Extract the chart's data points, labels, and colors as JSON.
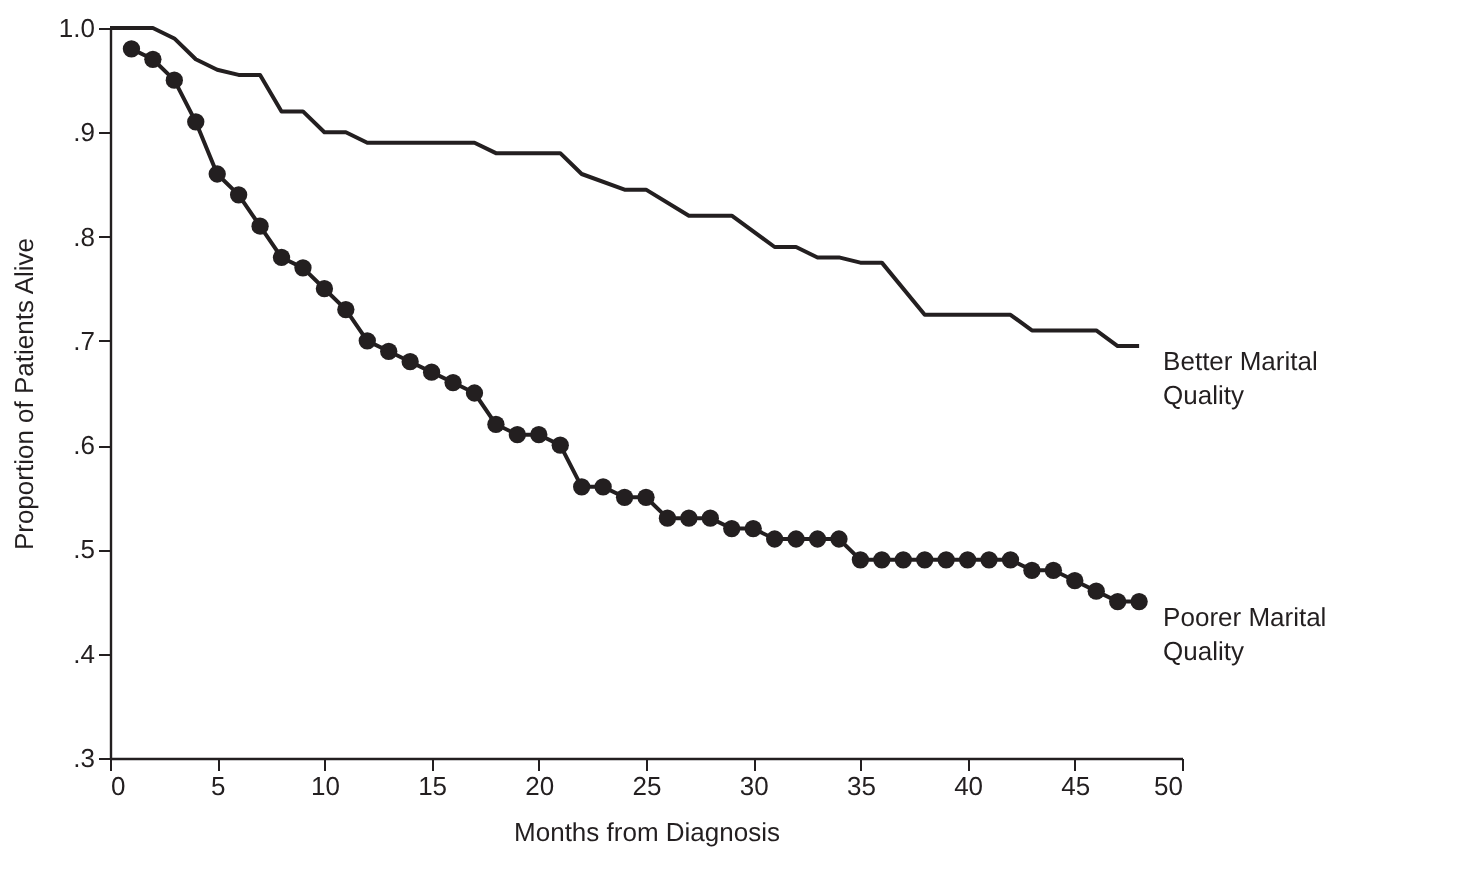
{
  "chart_data": {
    "type": "line",
    "xlabel": "Months from Diagnosis",
    "ylabel": "Proportion of Patients Alive",
    "xlim": [
      0,
      50
    ],
    "xticks": [
      0,
      5,
      10,
      15,
      20,
      25,
      30,
      35,
      40,
      45,
      50
    ],
    "ylim": [
      0.3,
      1.0
    ],
    "yticks": [
      {
        "value": 0.3,
        "label": ".3"
      },
      {
        "value": 0.4,
        "label": ".4"
      },
      {
        "value": 0.5,
        "label": ".5"
      },
      {
        "value": 0.6,
        "label": ".6"
      },
      {
        "value": 0.7,
        "label": ".7"
      },
      {
        "value": 0.8,
        "label": ".8"
      },
      {
        "value": 0.9,
        "label": ".9"
      },
      {
        "value": 1.0,
        "label": "1.0"
      }
    ],
    "grid": false,
    "series": [
      {
        "name": "Better Marital Quality",
        "color": "#231f20",
        "marker": "none",
        "x": [
          0,
          2,
          3,
          4,
          5,
          6,
          7,
          8,
          9,
          10,
          11,
          12,
          17,
          18,
          21,
          22,
          24,
          25,
          27,
          29,
          31,
          32,
          33,
          34,
          35,
          36,
          38,
          42,
          43,
          46,
          47,
          48
        ],
        "values": [
          1.0,
          1.0,
          0.99,
          0.97,
          0.96,
          0.955,
          0.955,
          0.92,
          0.92,
          0.9,
          0.9,
          0.89,
          0.89,
          0.88,
          0.88,
          0.86,
          0.845,
          0.845,
          0.82,
          0.82,
          0.79,
          0.79,
          0.78,
          0.78,
          0.775,
          0.775,
          0.725,
          0.725,
          0.71,
          0.71,
          0.695,
          0.695
        ]
      },
      {
        "name": "Poorer Marital Quality",
        "color": "#231f20",
        "marker": "circle",
        "x": [
          1,
          2,
          3,
          4,
          5,
          6,
          7,
          8,
          9,
          10,
          11,
          12,
          13,
          14,
          15,
          16,
          17,
          18,
          19,
          20,
          21,
          22,
          23,
          24,
          25,
          26,
          27,
          28,
          29,
          30,
          31,
          32,
          33,
          34,
          35,
          36,
          37,
          38,
          39,
          40,
          41,
          42,
          43,
          44,
          45,
          46,
          47,
          48
        ],
        "values": [
          0.98,
          0.97,
          0.95,
          0.91,
          0.86,
          0.84,
          0.81,
          0.78,
          0.77,
          0.75,
          0.73,
          0.7,
          0.69,
          0.68,
          0.67,
          0.66,
          0.65,
          0.62,
          0.61,
          0.61,
          0.6,
          0.56,
          0.56,
          0.55,
          0.55,
          0.53,
          0.53,
          0.53,
          0.52,
          0.52,
          0.51,
          0.51,
          0.51,
          0.51,
          0.49,
          0.49,
          0.49,
          0.49,
          0.49,
          0.49,
          0.49,
          0.49,
          0.48,
          0.48,
          0.47,
          0.46,
          0.45,
          0.45
        ]
      }
    ]
  }
}
